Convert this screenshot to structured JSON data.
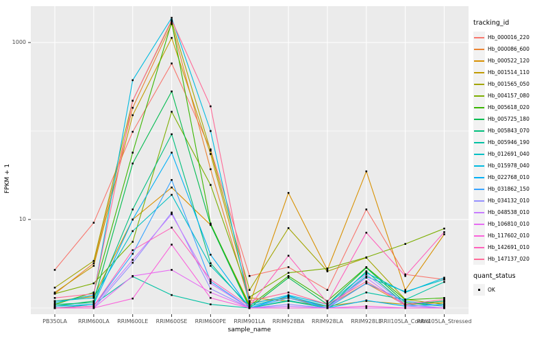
{
  "chart_data": {
    "type": "line",
    "title": "",
    "xlabel": "sample_name",
    "ylabel": "FPKM + 1",
    "y_scale": "log10",
    "ylim": [
      0.85,
      2600
    ],
    "y_ticks": [
      {
        "label": "1000",
        "value": 1000
      },
      {
        "label": "10",
        "value": 10
      }
    ],
    "y_minor_gridlines": [
      1,
      100
    ],
    "grid": true,
    "panel_bg": "#EBEBEB",
    "gridline_color": "#FFFFFF",
    "point_color": "#000000",
    "point_shape": "square",
    "categories": [
      "PB350LA",
      "RRIM600LA",
      "RRIM600LE",
      "RRIM600SE",
      "RRIM600PE",
      "RRIM901LA",
      "RRIM928BA",
      "RRIM928LA",
      "RRIM928LE",
      "RRII105LA_Control",
      "RRII105LA_Stressed"
    ],
    "legend": {
      "title": "tracking_id",
      "position": "right"
    },
    "quant_legend": {
      "title": "quant_status",
      "items": [
        {
          "label": "OK",
          "marker": "black-square"
        }
      ]
    },
    "series": [
      {
        "name": "Hb_000016_220",
        "color": "#F8766D",
        "values": [
          2.7,
          9.2,
          98,
          580,
          62,
          2.3,
          2.9,
          1.6,
          13,
          2.4,
          2.1
        ]
      },
      {
        "name": "Hb_000086_600",
        "color": "#EA8331",
        "values": [
          1.45,
          3.2,
          183,
          1620,
          37,
          1.15,
          1.3,
          1.05,
          1.9,
          1.08,
          1.2
        ]
      },
      {
        "name": "Hb_000522_120",
        "color": "#D89000",
        "values": [
          1.2,
          1.35,
          10,
          23,
          8.7,
          1.1,
          20,
          2.7,
          35,
          1.6,
          6.8
        ]
      },
      {
        "name": "Hb_001514_110",
        "color": "#C09B00",
        "values": [
          1.5,
          3.0,
          151,
          1130,
          55,
          1.3,
          1.2,
          1.05,
          1.2,
          1.1,
          1.15
        ]
      },
      {
        "name": "Hb_001565_050",
        "color": "#A3A500",
        "values": [
          1.7,
          3.4,
          220,
          1750,
          60,
          1.6,
          8.0,
          2.6,
          3.7,
          1.25,
          1.1
        ]
      },
      {
        "name": "Hb_004157_080",
        "color": "#7CAE00",
        "values": [
          1.45,
          1.9,
          5.6,
          165,
          24.6,
          1.33,
          2.5,
          2.8,
          3.74,
          5.3,
          7.9
        ]
      },
      {
        "name": "Hb_005618_020",
        "color": "#39B600",
        "values": [
          1.1,
          1.5,
          57,
          1700,
          9,
          1.05,
          2.3,
          1.2,
          2.9,
          1.24,
          1.3
        ]
      },
      {
        "name": "Hb_005725_180",
        "color": "#00BB4E",
        "values": [
          1.05,
          1.2,
          43,
          280,
          8.7,
          1.0,
          2.2,
          1.1,
          2.85,
          1.15,
          1.05
        ]
      },
      {
        "name": "Hb_005843_070",
        "color": "#00BF7D",
        "values": [
          1.1,
          1.15,
          13,
          92,
          3.2,
          1.0,
          1.2,
          1.0,
          2.6,
          1.1,
          1.2
        ]
      },
      {
        "name": "Hb_005946_190",
        "color": "#00C1A3",
        "values": [
          1.0,
          1.1,
          2.27,
          1.4,
          1.1,
          1.0,
          1.22,
          1.0,
          1.5,
          1.24,
          1.97
        ]
      },
      {
        "name": "Hb_012691_040",
        "color": "#00BFC4",
        "values": [
          1.2,
          1.3,
          7.4,
          19,
          3.0,
          1.05,
          1.35,
          1.05,
          2.27,
          1.53,
          2.1
        ]
      },
      {
        "name": "Hb_015978_040",
        "color": "#00BAE0",
        "values": [
          1.15,
          1.4,
          375,
          1900,
          100,
          1.1,
          1.4,
          1.1,
          2.5,
          1.5,
          2.2
        ]
      },
      {
        "name": "Hb_022768_010",
        "color": "#00B0F6",
        "values": [
          1.05,
          1.1,
          10,
          57,
          4.0,
          1.0,
          1.38,
          1.0,
          1.22,
          1.05,
          1.1
        ]
      },
      {
        "name": "Hb_031862_150",
        "color": "#35A2FF",
        "values": [
          1.0,
          1.05,
          4.1,
          28,
          2.0,
          1.0,
          1.3,
          1.0,
          1.9,
          1.2,
          1.05
        ]
      },
      {
        "name": "Hb_034132_010",
        "color": "#9590FF",
        "values": [
          1.0,
          1.0,
          3.25,
          12,
          1.65,
          1.0,
          1.1,
          1.0,
          2.4,
          1.1,
          1.0
        ]
      },
      {
        "name": "Hb_048538_010",
        "color": "#C77CFF",
        "values": [
          1.0,
          1.05,
          3.5,
          11.5,
          1.9,
          1.0,
          1.05,
          1.0,
          2.2,
          1.05,
          1.0
        ]
      },
      {
        "name": "Hb_106810_010",
        "color": "#E76BF3",
        "values": [
          1.0,
          1.0,
          2.3,
          2.7,
          1.5,
          1.0,
          1.0,
          1.0,
          1.0,
          1.0,
          1.0
        ]
      },
      {
        "name": "Hb_117602_010",
        "color": "#FA62DB",
        "values": [
          1.0,
          1.0,
          1.28,
          5.2,
          1.3,
          1.0,
          1.0,
          1.0,
          1.05,
          1.0,
          1.0
        ]
      },
      {
        "name": "Hb_142691_010",
        "color": "#FF62BC",
        "values": [
          1.0,
          1.05,
          4.5,
          8.1,
          2.1,
          1.05,
          3.9,
          1.15,
          7.1,
          2.3,
          7.2
        ]
      },
      {
        "name": "Hb_147137_020",
        "color": "#FF6A98",
        "values": [
          1.3,
          1.45,
          220,
          1800,
          190,
          1.2,
          1.5,
          1.1,
          2.0,
          1.1,
          1.25
        ]
      }
    ]
  }
}
